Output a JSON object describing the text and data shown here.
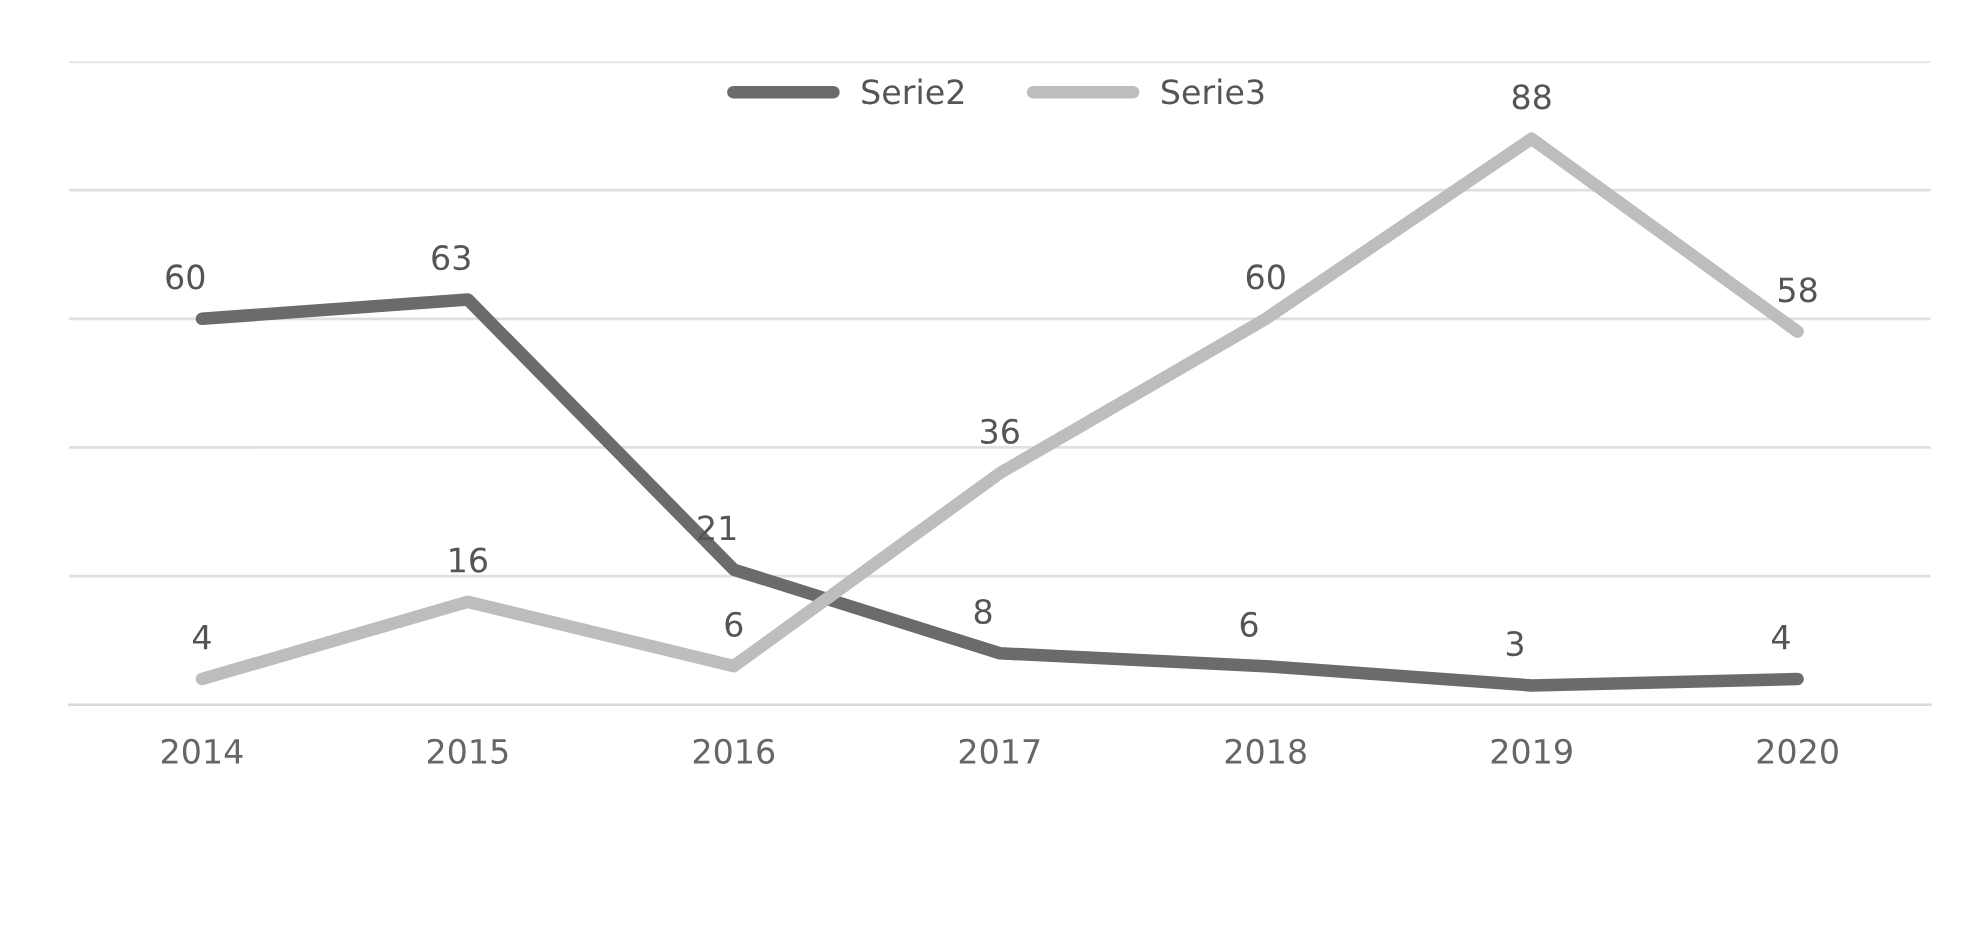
{
  "chart_data": {
    "type": "line",
    "categories": [
      "2014",
      "2015",
      "2016",
      "2017",
      "2018",
      "2019",
      "2020"
    ],
    "series": [
      {
        "name": "Serie2",
        "color": "#6b6b6b",
        "values": [
          60,
          63,
          21,
          8,
          6,
          3,
          4
        ]
      },
      {
        "name": "Serie3",
        "color": "#bdbdbd",
        "values": [
          4,
          16,
          6,
          36,
          60,
          88,
          58
        ]
      }
    ],
    "ylim": [
      0,
      100
    ],
    "yticks": [
      {
        "value": 0,
        "label": null
      },
      {
        "value": 20,
        "label": null
      },
      {
        "value": 40,
        "label": null
      },
      {
        "value": 60,
        "label": null
      },
      {
        "value": 80,
        "label": null
      },
      {
        "value": 100,
        "label": null
      }
    ],
    "grid": "y",
    "legend": "top",
    "data_labels": true,
    "tick_labels": "x",
    "marker": "none",
    "line_style": "solid"
  }
}
